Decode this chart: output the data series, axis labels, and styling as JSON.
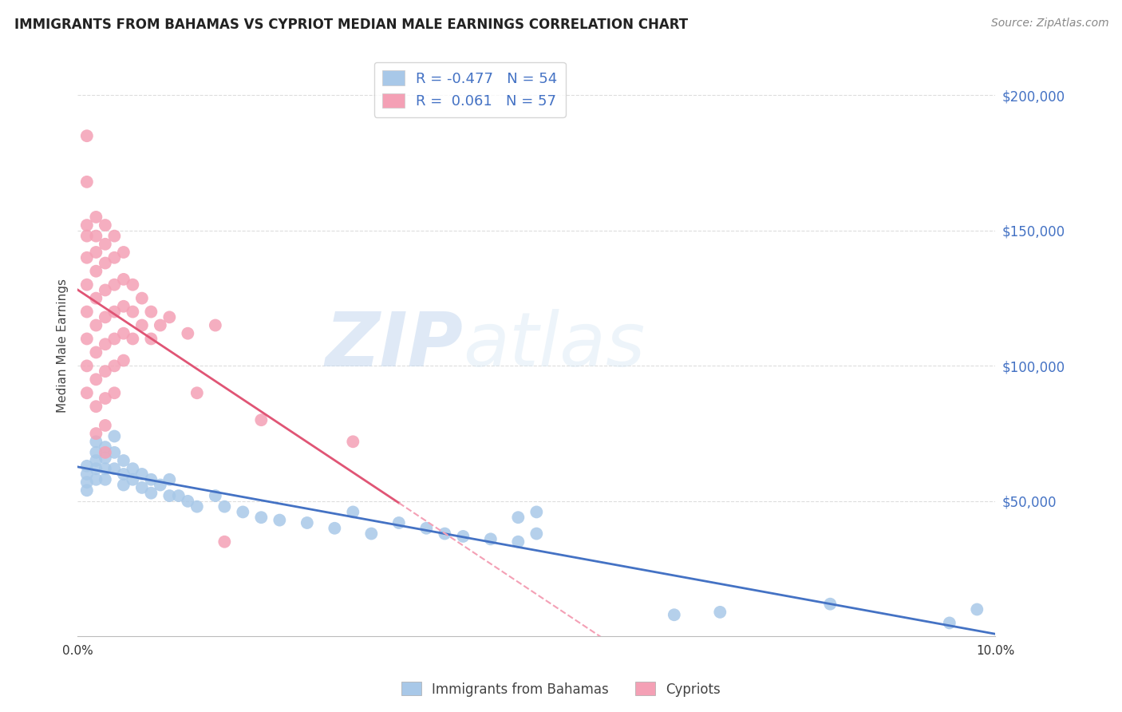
{
  "title": "IMMIGRANTS FROM BAHAMAS VS CYPRIOT MEDIAN MALE EARNINGS CORRELATION CHART",
  "source": "Source: ZipAtlas.com",
  "ylabel": "Median Male Earnings",
  "xmin": 0.0,
  "xmax": 0.1,
  "ymin": 0,
  "ymax": 215000,
  "color_bahamas": "#a8c8e8",
  "color_cypriot": "#f4a0b5",
  "color_line_bahamas": "#4472c4",
  "color_line_cypriot": "#e05575",
  "color_trendline_cypriot_dashed": "#f4a0b5",
  "watermark_zip": "ZIP",
  "watermark_atlas": "atlas",
  "bahamas_x": [
    0.001,
    0.001,
    0.001,
    0.001,
    0.002,
    0.002,
    0.002,
    0.002,
    0.002,
    0.003,
    0.003,
    0.003,
    0.003,
    0.004,
    0.004,
    0.004,
    0.005,
    0.005,
    0.005,
    0.006,
    0.006,
    0.007,
    0.007,
    0.008,
    0.008,
    0.009,
    0.01,
    0.01,
    0.011,
    0.012,
    0.013,
    0.015,
    0.016,
    0.018,
    0.02,
    0.022,
    0.025,
    0.028,
    0.03,
    0.032,
    0.035,
    0.038,
    0.04,
    0.042,
    0.045,
    0.048,
    0.05,
    0.048,
    0.065,
    0.07,
    0.082,
    0.05,
    0.095,
    0.098
  ],
  "bahamas_y": [
    63000,
    60000,
    57000,
    54000,
    72000,
    68000,
    65000,
    62000,
    58000,
    70000,
    66000,
    62000,
    58000,
    74000,
    68000,
    62000,
    65000,
    60000,
    56000,
    62000,
    58000,
    60000,
    55000,
    58000,
    53000,
    56000,
    58000,
    52000,
    52000,
    50000,
    48000,
    52000,
    48000,
    46000,
    44000,
    43000,
    42000,
    40000,
    46000,
    38000,
    42000,
    40000,
    38000,
    37000,
    36000,
    35000,
    46000,
    44000,
    8000,
    9000,
    12000,
    38000,
    5000,
    10000
  ],
  "cypriot_x": [
    0.001,
    0.001,
    0.001,
    0.001,
    0.001,
    0.001,
    0.001,
    0.001,
    0.001,
    0.001,
    0.002,
    0.002,
    0.002,
    0.002,
    0.002,
    0.002,
    0.002,
    0.002,
    0.002,
    0.002,
    0.003,
    0.003,
    0.003,
    0.003,
    0.003,
    0.003,
    0.003,
    0.003,
    0.003,
    0.003,
    0.004,
    0.004,
    0.004,
    0.004,
    0.004,
    0.004,
    0.004,
    0.005,
    0.005,
    0.005,
    0.005,
    0.005,
    0.006,
    0.006,
    0.006,
    0.007,
    0.007,
    0.008,
    0.008,
    0.009,
    0.01,
    0.012,
    0.015,
    0.02,
    0.03,
    0.013,
    0.016
  ],
  "cypriot_y": [
    185000,
    168000,
    152000,
    148000,
    140000,
    130000,
    120000,
    110000,
    100000,
    90000,
    155000,
    148000,
    142000,
    135000,
    125000,
    115000,
    105000,
    95000,
    85000,
    75000,
    152000,
    145000,
    138000,
    128000,
    118000,
    108000,
    98000,
    88000,
    78000,
    68000,
    148000,
    140000,
    130000,
    120000,
    110000,
    100000,
    90000,
    142000,
    132000,
    122000,
    112000,
    102000,
    130000,
    120000,
    110000,
    125000,
    115000,
    120000,
    110000,
    115000,
    118000,
    112000,
    115000,
    80000,
    72000,
    90000,
    35000
  ]
}
